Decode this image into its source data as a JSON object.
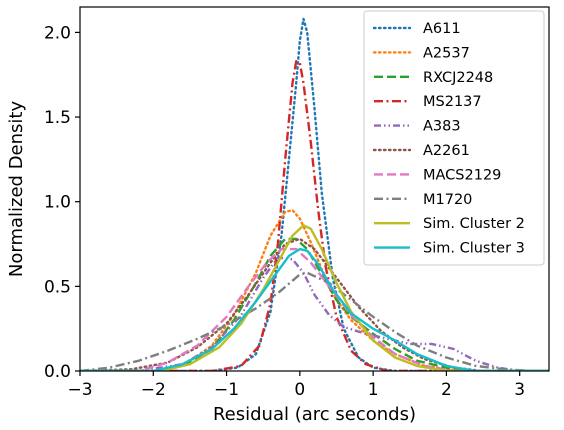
{
  "chart_data": {
    "type": "line",
    "title": "",
    "xlabel": "Residual (arc seconds)",
    "ylabel": "Normalized Density",
    "xlim": [
      -3,
      3.4
    ],
    "ylim": [
      0,
      2.15
    ],
    "x_ticks": [
      {
        "value": -3,
        "label": "−3"
      },
      {
        "value": -2,
        "label": "−2"
      },
      {
        "value": -1,
        "label": "−1"
      },
      {
        "value": 0,
        "label": "0"
      },
      {
        "value": 1,
        "label": "1"
      },
      {
        "value": 2,
        "label": "2"
      },
      {
        "value": 3,
        "label": "3"
      }
    ],
    "y_ticks": [
      {
        "value": 0.0,
        "label": "0.0"
      },
      {
        "value": 0.5,
        "label": "0.5"
      },
      {
        "value": 1.0,
        "label": "1.0"
      },
      {
        "value": 1.5,
        "label": "1.5"
      },
      {
        "value": 2.0,
        "label": "2.0"
      }
    ],
    "grid": false,
    "legend_position": "top-right",
    "series": [
      {
        "name": "A611",
        "color": "#1f77b4",
        "dash": "dotted",
        "x": [
          -3,
          -1.2,
          -0.85,
          -0.6,
          -0.4,
          -0.25,
          -0.15,
          -0.05,
          0.0,
          0.05,
          0.1,
          0.2,
          0.3,
          0.45,
          0.6,
          0.8,
          1.0,
          1.3,
          3.4
        ],
        "y": [
          0,
          0,
          0.02,
          0.1,
          0.35,
          0.8,
          1.25,
          1.7,
          1.95,
          2.08,
          2.0,
          1.55,
          1.05,
          0.55,
          0.25,
          0.08,
          0.02,
          0,
          0
        ]
      },
      {
        "name": "A2537",
        "color": "#ff7f0e",
        "dash": "dotted",
        "x": [
          -3,
          -2.0,
          -1.6,
          -1.2,
          -0.9,
          -0.6,
          -0.4,
          -0.2,
          -0.1,
          0.0,
          0.15,
          0.3,
          0.5,
          0.7,
          1.0,
          1.3,
          1.7,
          2.2,
          3.4
        ],
        "y": [
          0,
          0,
          0.03,
          0.15,
          0.33,
          0.58,
          0.8,
          0.94,
          0.95,
          0.9,
          0.76,
          0.6,
          0.42,
          0.3,
          0.18,
          0.1,
          0.03,
          0,
          0
        ]
      },
      {
        "name": "RXCJ2248",
        "color": "#2ca02c",
        "dash": "dashed",
        "x": [
          -3,
          -2.0,
          -1.6,
          -1.2,
          -0.9,
          -0.6,
          -0.4,
          -0.2,
          -0.05,
          0.1,
          0.3,
          0.5,
          0.7,
          1.0,
          1.3,
          1.6,
          2.0,
          2.4,
          3.4
        ],
        "y": [
          0,
          0,
          0.03,
          0.13,
          0.3,
          0.52,
          0.68,
          0.78,
          0.78,
          0.72,
          0.57,
          0.42,
          0.32,
          0.22,
          0.13,
          0.06,
          0.02,
          0,
          0
        ]
      },
      {
        "name": "MS2137",
        "color": "#d62728",
        "dash": "dashdot",
        "x": [
          -3,
          -1.2,
          -0.8,
          -0.55,
          -0.4,
          -0.3,
          -0.2,
          -0.1,
          -0.05,
          0.0,
          0.05,
          0.15,
          0.25,
          0.35,
          0.5,
          0.7,
          0.9,
          1.2,
          3.4
        ],
        "y": [
          0,
          0,
          0.03,
          0.15,
          0.4,
          0.75,
          1.25,
          1.7,
          1.83,
          1.82,
          1.7,
          1.35,
          0.95,
          0.62,
          0.32,
          0.12,
          0.04,
          0,
          0
        ]
      },
      {
        "name": "A383",
        "color": "#9467bd",
        "dash": "dashdotdot",
        "x": [
          -3,
          -2.2,
          -1.6,
          -1.2,
          -0.8,
          -0.5,
          -0.3,
          -0.1,
          0.05,
          0.2,
          0.4,
          0.6,
          0.9,
          1.2,
          1.5,
          1.8,
          2.1,
          2.4,
          2.7,
          3.0,
          3.4
        ],
        "y": [
          0,
          0,
          0.04,
          0.14,
          0.33,
          0.55,
          0.67,
          0.66,
          0.58,
          0.45,
          0.33,
          0.26,
          0.22,
          0.19,
          0.16,
          0.16,
          0.13,
          0.06,
          0.02,
          0,
          0
        ]
      },
      {
        "name": "A2261",
        "color": "#8c564b",
        "dash": "dotted",
        "x": [
          -3,
          -2.3,
          -1.8,
          -1.4,
          -1.0,
          -0.7,
          -0.4,
          -0.2,
          0.0,
          0.2,
          0.5,
          0.8,
          1.1,
          1.4,
          1.7,
          2.1,
          2.5,
          3.4
        ],
        "y": [
          0,
          0.01,
          0.05,
          0.14,
          0.28,
          0.45,
          0.64,
          0.75,
          0.78,
          0.72,
          0.55,
          0.38,
          0.24,
          0.14,
          0.07,
          0.02,
          0,
          0
        ]
      },
      {
        "name": "MACS2129",
        "color": "#e377c2",
        "dash": "dashed",
        "x": [
          -3,
          -2.2,
          -1.8,
          -1.4,
          -1.0,
          -0.7,
          -0.45,
          -0.25,
          -0.05,
          0.15,
          0.4,
          0.7,
          1.0,
          1.3,
          1.7,
          2.1,
          3.4
        ],
        "y": [
          0,
          0,
          0.05,
          0.15,
          0.32,
          0.5,
          0.64,
          0.72,
          0.72,
          0.64,
          0.5,
          0.33,
          0.2,
          0.1,
          0.03,
          0,
          0
        ]
      },
      {
        "name": "M1720",
        "color": "#7f7f7f",
        "dash": "dashdot",
        "x": [
          -3,
          -2.6,
          -2.2,
          -1.8,
          -1.4,
          -1.0,
          -0.6,
          -0.3,
          0.0,
          0.1,
          0.4,
          0.7,
          1.0,
          1.3,
          1.6,
          2.0,
          2.4,
          2.8,
          3.2
        ],
        "y": [
          0,
          0.02,
          0.06,
          0.12,
          0.19,
          0.27,
          0.37,
          0.46,
          0.57,
          0.58,
          0.52,
          0.42,
          0.32,
          0.23,
          0.15,
          0.08,
          0.03,
          0.01,
          0
        ]
      },
      {
        "name": "Sim. Cluster 2",
        "color": "#bcbd22",
        "dash": "solid",
        "x": [
          -3,
          -1.9,
          -1.5,
          -1.1,
          -0.8,
          -0.5,
          -0.3,
          -0.1,
          0.05,
          0.15,
          0.3,
          0.5,
          0.7,
          1.0,
          1.3,
          1.6,
          2.0,
          3.4
        ],
        "y": [
          0,
          0,
          0.04,
          0.14,
          0.28,
          0.48,
          0.64,
          0.8,
          0.86,
          0.84,
          0.72,
          0.52,
          0.35,
          0.18,
          0.08,
          0.03,
          0,
          0
        ]
      },
      {
        "name": "Sim. Cluster 3",
        "color": "#17becf",
        "dash": "solid",
        "x": [
          -3,
          -2.0,
          -1.6,
          -1.2,
          -0.9,
          -0.6,
          -0.35,
          -0.15,
          0.0,
          0.1,
          0.25,
          0.45,
          0.7,
          1.0,
          1.3,
          1.6,
          2.0,
          2.4,
          3.4
        ],
        "y": [
          0,
          0,
          0.04,
          0.13,
          0.25,
          0.41,
          0.56,
          0.68,
          0.72,
          0.71,
          0.63,
          0.48,
          0.34,
          0.25,
          0.18,
          0.1,
          0.03,
          0,
          0
        ]
      }
    ]
  }
}
